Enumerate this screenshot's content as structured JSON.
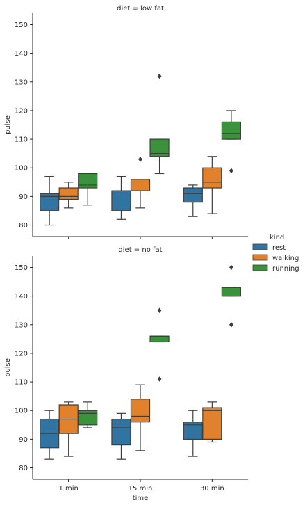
{
  "chart_data": [
    {
      "type": "box",
      "title": "diet = low fat",
      "xlabel": "",
      "ylabel": "pulse",
      "categories": [
        "1 min",
        "15 min",
        "30 min"
      ],
      "ylim": [
        76,
        154
      ],
      "yticks": [
        80,
        90,
        100,
        110,
        120,
        130,
        140,
        150
      ],
      "show_x_tick_labels": false,
      "series": [
        {
          "name": "rest",
          "color": "#3274a1",
          "boxes": [
            {
              "whislo": 80,
              "q1": 85,
              "med": 90,
              "q3": 91,
              "whishi": 97,
              "fliers": []
            },
            {
              "whislo": 82,
              "q1": 85,
              "med": 92,
              "q3": 92,
              "whishi": 97,
              "fliers": []
            },
            {
              "whislo": 83,
              "q1": 88,
              "med": 91,
              "q3": 93,
              "whishi": 94,
              "fliers": []
            }
          ]
        },
        {
          "name": "walking",
          "color": "#e1812c",
          "boxes": [
            {
              "whislo": 86,
              "q1": 89,
              "med": 90,
              "q3": 93,
              "whishi": 95,
              "fliers": []
            },
            {
              "whislo": 86,
              "q1": 92,
              "med": 96,
              "q3": 96,
              "whishi": 96,
              "fliers": [
                103
              ]
            },
            {
              "whislo": 84,
              "q1": 93,
              "med": 95,
              "q3": 100,
              "whishi": 104,
              "fliers": []
            }
          ]
        },
        {
          "name": "running",
          "color": "#3a923a",
          "boxes": [
            {
              "whislo": 87,
              "q1": 93,
              "med": 94,
              "q3": 98,
              "whishi": 98,
              "fliers": []
            },
            {
              "whislo": 98,
              "q1": 104,
              "med": 105,
              "q3": 110,
              "whishi": 110,
              "fliers": [
                132
              ]
            },
            {
              "whislo": 110,
              "q1": 110,
              "med": 112,
              "q3": 116,
              "whishi": 120,
              "fliers": [
                99
              ]
            }
          ]
        }
      ]
    },
    {
      "type": "box",
      "title": "diet = no fat",
      "xlabel": "time",
      "ylabel": "pulse",
      "categories": [
        "1 min",
        "15 min",
        "30 min"
      ],
      "ylim": [
        76,
        154
      ],
      "yticks": [
        80,
        90,
        100,
        110,
        120,
        130,
        140,
        150
      ],
      "show_x_tick_labels": true,
      "series": [
        {
          "name": "rest",
          "color": "#3274a1",
          "boxes": [
            {
              "whislo": 83,
              "q1": 87,
              "med": 92,
              "q3": 97,
              "whishi": 100,
              "fliers": []
            },
            {
              "whislo": 83,
              "q1": 88,
              "med": 94,
              "q3": 97,
              "whishi": 99,
              "fliers": []
            },
            {
              "whislo": 84,
              "q1": 90,
              "med": 95,
              "q3": 96,
              "whishi": 100,
              "fliers": []
            }
          ]
        },
        {
          "name": "walking",
          "color": "#e1812c",
          "boxes": [
            {
              "whislo": 84,
              "q1": 92,
              "med": 97,
              "q3": 102,
              "whishi": 103,
              "fliers": []
            },
            {
              "whislo": 86,
              "q1": 96,
              "med": 98,
              "q3": 104,
              "whishi": 109,
              "fliers": []
            },
            {
              "whislo": 89,
              "q1": 90,
              "med": 100,
              "q3": 101,
              "whishi": 103,
              "fliers": []
            }
          ]
        },
        {
          "name": "running",
          "color": "#3a923a",
          "boxes": [
            {
              "whislo": 94,
              "q1": 95,
              "med": 99,
              "q3": 100,
              "whishi": 103,
              "fliers": []
            },
            {
              "whislo": 124,
              "q1": 124,
              "med": 126,
              "q3": 126,
              "whishi": 126,
              "fliers": [
                111,
                135
              ]
            },
            {
              "whislo": 140,
              "q1": 140,
              "med": 140,
              "q3": 143,
              "whishi": 143,
              "fliers": [
                130,
                150
              ]
            }
          ]
        }
      ]
    }
  ],
  "legend": {
    "title": "kind",
    "position": "right",
    "items": [
      {
        "label": "rest",
        "color": "#3274a1"
      },
      {
        "label": "walking",
        "color": "#e1812c"
      },
      {
        "label": "running",
        "color": "#3a923a"
      }
    ]
  },
  "style": {
    "line_color": "#3d3d3d",
    "axis_color": "#262626"
  }
}
